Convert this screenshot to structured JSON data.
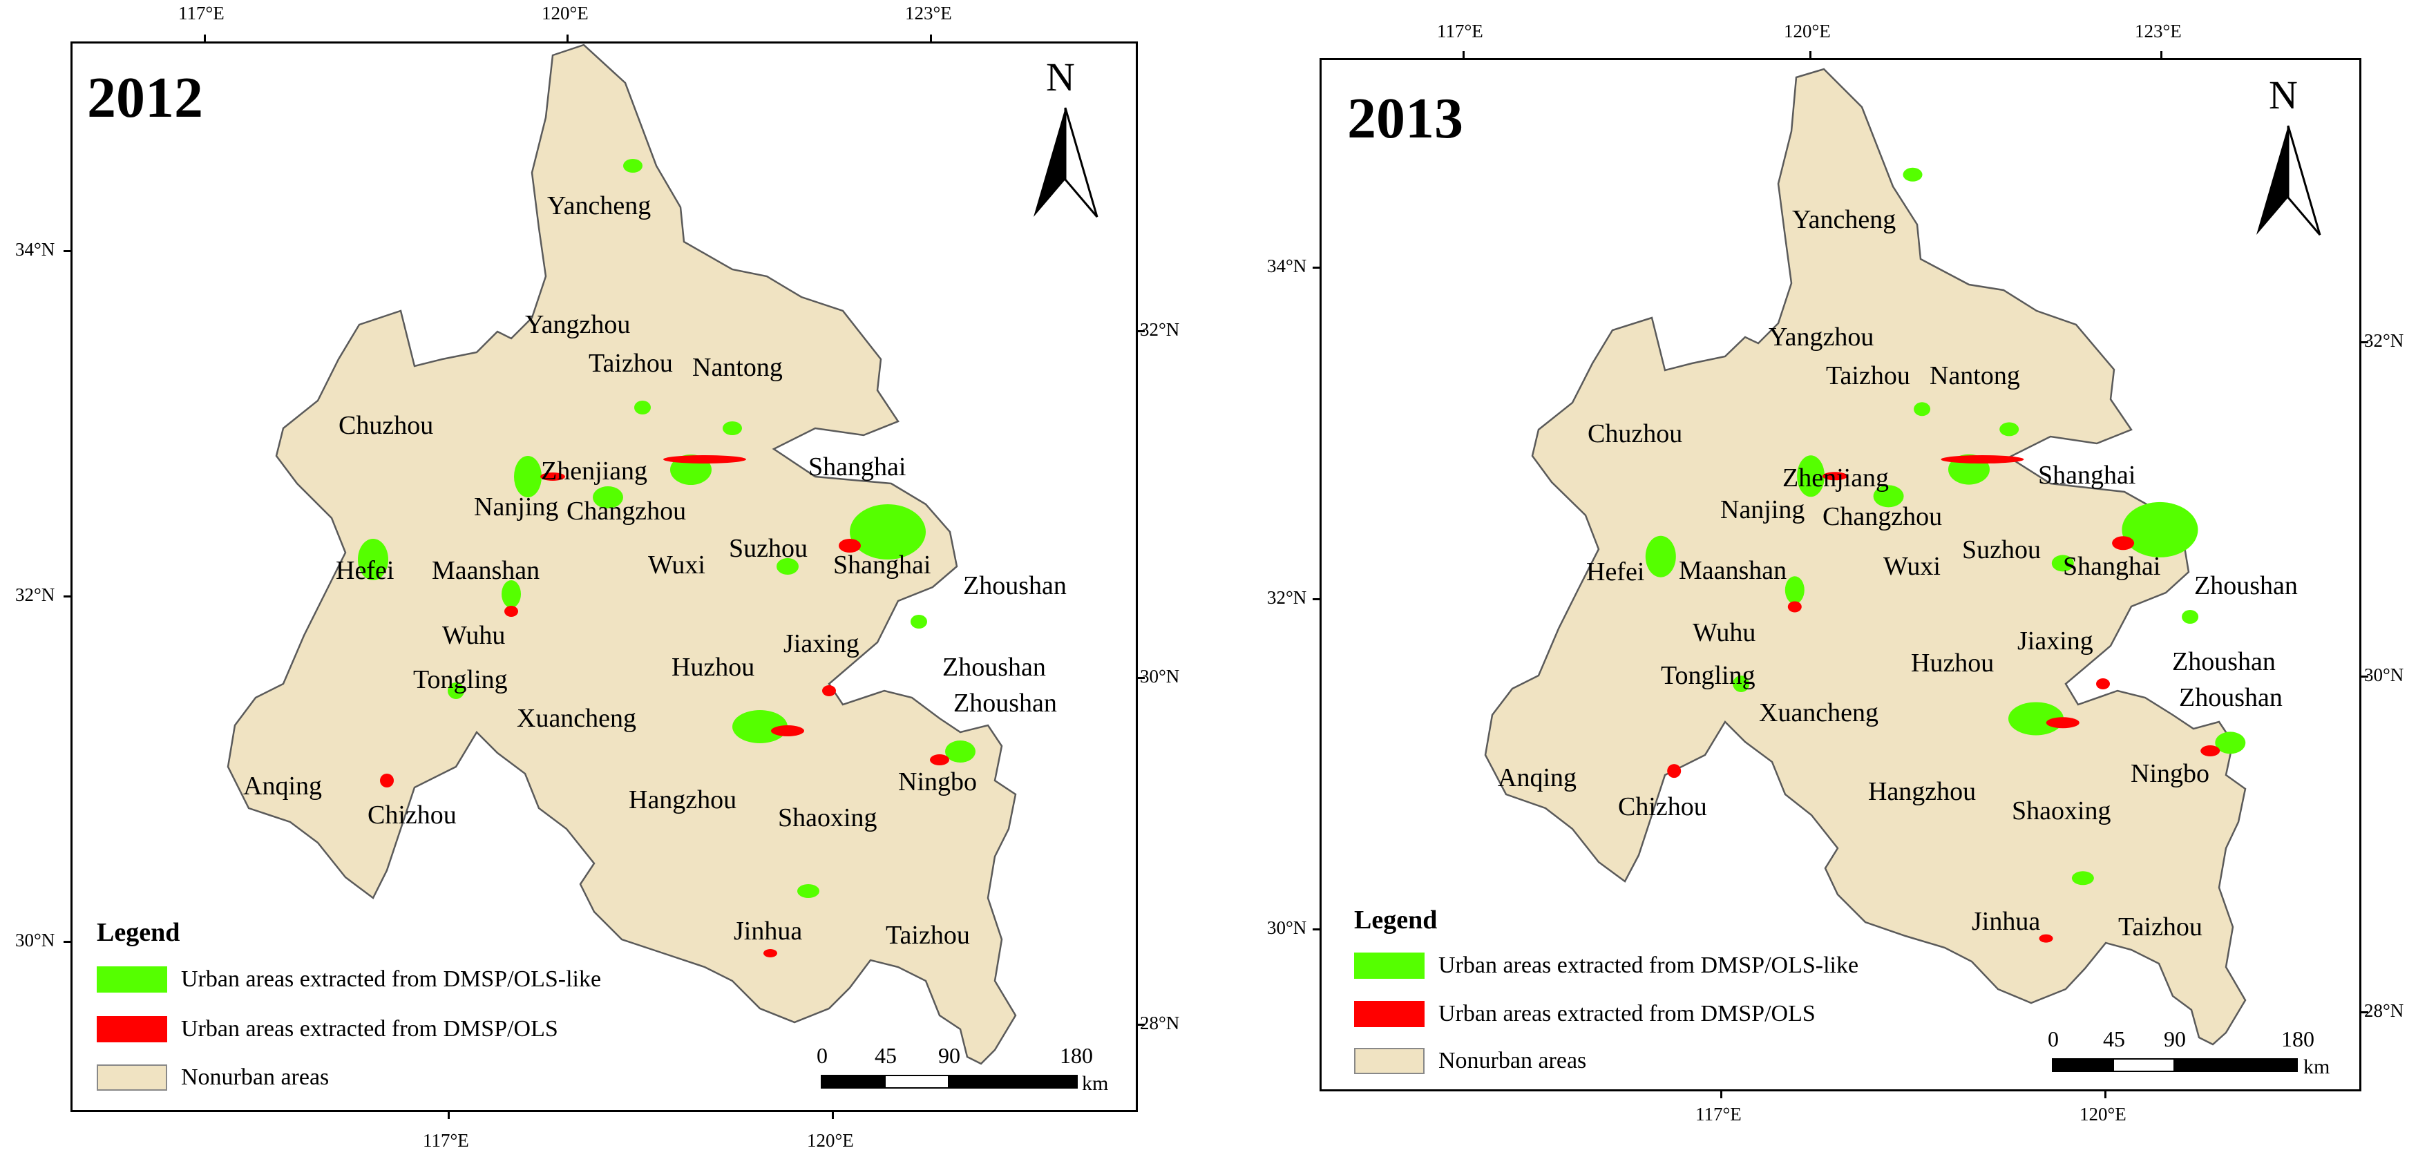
{
  "colors": {
    "nonurban": "#F0E3C2",
    "boundary": "#5a5a5a",
    "dmsp_ols_like": "#55FF00",
    "dmsp_ols": "#FF0000"
  },
  "panels": [
    {
      "year": "2012",
      "top_ticks": [
        "117°E",
        "120°E",
        "123°E"
      ],
      "bottom_ticks": [
        "117°E",
        "120°E"
      ],
      "left_ticks": [
        "34°N",
        "32°N",
        "30°N"
      ],
      "right_ticks": [
        "32°N",
        "30°N",
        "28°N"
      ],
      "north_label": "N",
      "legend": {
        "title": "Legend",
        "items": [
          {
            "label": "Urban areas extracted from DMSP/OLS-like",
            "color_key": "dmsp_ols_like"
          },
          {
            "label": "Urban areas extracted from DMSP/OLS",
            "color_key": "dmsp_ols"
          },
          {
            "label": "Nonurban areas",
            "color_key": "nonurban"
          }
        ]
      },
      "scale": {
        "labels": [
          "0",
          "45",
          "90",
          "180"
        ],
        "unit": "km"
      },
      "cities": [
        "Yancheng",
        "Yangzhou",
        "Taizhou",
        "Nantong",
        "Chuzhou",
        "Zhenjiang",
        "Shanghai",
        "Nanjing",
        "Changzhou",
        "Hefei",
        "Maanshan",
        "Wuxi",
        "Suzhou",
        "Shanghai",
        "Zhoushan",
        "Wuhu",
        "Jiaxing",
        "Tongling",
        "Huzhou",
        "Zhoushan",
        "Zhoushan",
        "Xuancheng",
        "Anqing",
        "Chizhou",
        "Hangzhou",
        "Ningbo",
        "Shaoxing",
        "Jinhua",
        "Taizhou"
      ]
    },
    {
      "year": "2013",
      "top_ticks": [
        "117°E",
        "120°E",
        "123°E"
      ],
      "bottom_ticks": [
        "117°E",
        "120°E"
      ],
      "left_ticks": [
        "34°N",
        "32°N",
        "30°N"
      ],
      "right_ticks": [
        "32°N",
        "30°N",
        "28°N"
      ],
      "north_label": "N",
      "legend": {
        "title": "Legend",
        "items": [
          {
            "label": "Urban areas extracted from DMSP/OLS-like",
            "color_key": "dmsp_ols_like"
          },
          {
            "label": "Urban areas extracted from DMSP/OLS",
            "color_key": "dmsp_ols"
          },
          {
            "label": "Nonurban areas",
            "color_key": "nonurban"
          }
        ]
      },
      "scale": {
        "labels": [
          "0",
          "45",
          "90",
          "180"
        ],
        "unit": "km"
      },
      "cities": [
        "Yancheng",
        "Yangzhou",
        "Taizhou",
        "Nantong",
        "Chuzhou",
        "Zhenjiang",
        "Shanghai",
        "Nanjing",
        "Changzhou",
        "Hefei",
        "Maanshan",
        "Wuxi",
        "Suzhou",
        "Shanghai",
        "Zhoushan",
        "Wuhu",
        "Jiaxing",
        "Tongling",
        "Huzhou",
        "Zhoushan",
        "Zhoushan",
        "Xuancheng",
        "Anqing",
        "Chizhou",
        "Hangzhou",
        "Ningbo",
        "Shaoxing",
        "Jinhua",
        "Taizhou"
      ]
    }
  ]
}
